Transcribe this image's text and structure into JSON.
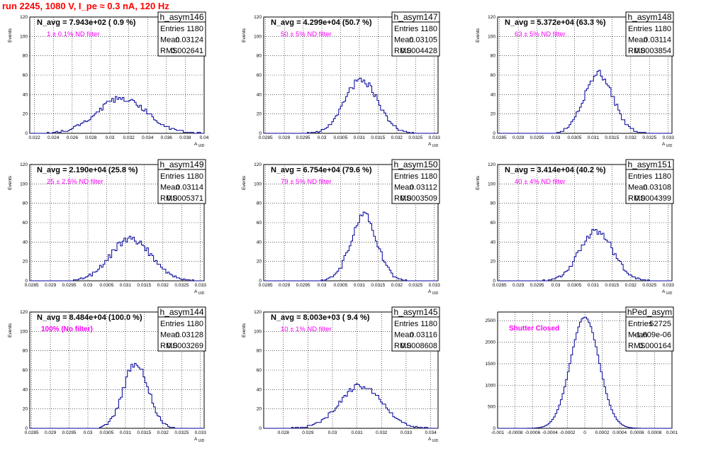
{
  "page": {
    "title": "run 2245,  1080 V, I_pe ≈ 0.3 nA, 120 Hz",
    "colors": {
      "title": "#ff0000",
      "histogram": "#000099",
      "annotation": "#ff00ff",
      "grid": "#000000"
    }
  },
  "chart_data": [
    {
      "type": "histogram",
      "stats": {
        "name": "h_asym146",
        "entries_label": "Entries",
        "entries": "1180",
        "mean_label": "Mean",
        "mean": "0.03124",
        "rms_label": "RMS",
        "rms": "0.002641"
      },
      "navg": "N_avg = 7.943e+02 ( 0.9 %)",
      "annotation": "1 ± 0.1% ND filter",
      "annotation_bold": false,
      "xlabel": "A_UID",
      "ylabel": "Events",
      "xlim": [
        0.0215,
        0.04
      ],
      "ylim": [
        0,
        120
      ],
      "xticks": [
        "0.022",
        "0.024",
        "0.026",
        "0.028",
        "0.03",
        "0.032",
        "0.034",
        "0.036",
        "0.038",
        "0.04"
      ],
      "xtick_values": [
        0.022,
        0.024,
        0.026,
        0.028,
        0.03,
        0.032,
        0.034,
        0.036,
        0.038,
        0.04
      ],
      "yticks": [
        "0",
        "20",
        "40",
        "60",
        "80",
        "100",
        "120"
      ],
      "ytick_values": [
        0,
        20,
        40,
        60,
        80,
        100,
        120
      ],
      "dist": {
        "mean": 0.03124,
        "rms": 0.002641,
        "peak": 36,
        "seed": 146
      }
    },
    {
      "type": "histogram",
      "stats": {
        "name": "h_asym147",
        "entries_label": "Entries",
        "entries": "1180",
        "mean_label": "Mean",
        "mean": "0.03105",
        "rms_label": "RMS",
        "rms": "0.0004428"
      },
      "navg": "N_avg = 4.299e+04 (50.7 %)",
      "annotation": "50 ± 5% ND filter",
      "annotation_bold": false,
      "xlabel": "A_UID",
      "ylabel": "Events",
      "xlim": [
        0.02845,
        0.0331
      ],
      "ylim": [
        0,
        120
      ],
      "xticks": [
        "0.0285",
        "0.029",
        "0.0295",
        "0.03",
        "0.0305",
        "0.031",
        "0.0315",
        "0.032",
        "0.0325",
        "0.033"
      ],
      "xtick_values": [
        0.0285,
        0.029,
        0.0295,
        0.03,
        0.0305,
        0.031,
        0.0315,
        0.032,
        0.0325,
        0.033
      ],
      "yticks": [
        "0",
        "20",
        "40",
        "60",
        "80",
        "100",
        "120"
      ],
      "ytick_values": [
        0,
        20,
        40,
        60,
        80,
        100,
        120
      ],
      "dist": {
        "mean": 0.03105,
        "rms": 0.0004428,
        "peak": 55,
        "seed": 147
      }
    },
    {
      "type": "histogram",
      "stats": {
        "name": "h_asym148",
        "entries_label": "Entries",
        "entries": "1180",
        "mean_label": "Mean",
        "mean": "0.03114",
        "rms_label": "RMS",
        "rms": "0.0003854"
      },
      "navg": "N_avg = 5.372e+04 (63.3 %)",
      "annotation": "63 ± 5% ND filter",
      "annotation_bold": false,
      "xlabel": "A_UID",
      "ylabel": "Events",
      "xlim": [
        0.02845,
        0.0331
      ],
      "ylim": [
        0,
        120
      ],
      "xticks": [
        "0.0285",
        "0.029",
        "0.0295",
        "0.03",
        "0.0305",
        "0.031",
        "0.0315",
        "0.032",
        "0.0325",
        "0.033"
      ],
      "xtick_values": [
        0.0285,
        0.029,
        0.0295,
        0.03,
        0.0305,
        0.031,
        0.0315,
        0.032,
        0.0325,
        0.033
      ],
      "yticks": [
        "0",
        "20",
        "40",
        "60",
        "80",
        "100",
        "120"
      ],
      "ytick_values": [
        0,
        20,
        40,
        60,
        80,
        100,
        120
      ],
      "dist": {
        "mean": 0.03114,
        "rms": 0.0003854,
        "peak": 62,
        "seed": 148
      }
    },
    {
      "type": "histogram",
      "stats": {
        "name": "h_asym149",
        "entries_label": "Entries",
        "entries": "1180",
        "mean_label": "Mean",
        "mean": "0.03114",
        "rms_label": "RMS",
        "rms": "0.0005371"
      },
      "navg": "N_avg = 2.190e+04 (25.8 %)",
      "annotation": "25 ± 2.5% ND filter",
      "annotation_bold": false,
      "xlabel": "A_UID",
      "ylabel": "Events",
      "xlim": [
        0.02845,
        0.0331
      ],
      "ylim": [
        0,
        120
      ],
      "xticks": [
        "0.0285",
        "0.029",
        "0.0295",
        "0.03",
        "0.0305",
        "0.031",
        "0.0315",
        "0.032",
        "0.0325",
        "0.033"
      ],
      "xtick_values": [
        0.0285,
        0.029,
        0.0295,
        0.03,
        0.0305,
        0.031,
        0.0315,
        0.032,
        0.0325,
        0.033
      ],
      "yticks": [
        "0",
        "20",
        "40",
        "60",
        "80",
        "100",
        "120"
      ],
      "ytick_values": [
        0,
        20,
        40,
        60,
        80,
        100,
        120
      ],
      "dist": {
        "mean": 0.03114,
        "rms": 0.0005371,
        "peak": 44,
        "seed": 149
      }
    },
    {
      "type": "histogram",
      "stats": {
        "name": "h_asym150",
        "entries_label": "Entries",
        "entries": "1180",
        "mean_label": "Mean",
        "mean": "0.03112",
        "rms_label": "RMS",
        "rms": "0.0003509"
      },
      "navg": "N_avg = 6.754e+04 (79.6 %)",
      "annotation": "79 ± 5% ND filter",
      "annotation_bold": false,
      "xlabel": "A_UID",
      "ylabel": "Events",
      "xlim": [
        0.02845,
        0.0331
      ],
      "ylim": [
        0,
        120
      ],
      "xticks": [
        "0.0285",
        "0.029",
        "0.0295",
        "0.03",
        "0.0305",
        "0.031",
        "0.0315",
        "0.032",
        "0.0325",
        "0.033"
      ],
      "xtick_values": [
        0.0285,
        0.029,
        0.0295,
        0.03,
        0.0305,
        0.031,
        0.0315,
        0.032,
        0.0325,
        0.033
      ],
      "yticks": [
        "0",
        "20",
        "40",
        "60",
        "80",
        "100",
        "120"
      ],
      "ytick_values": [
        0,
        20,
        40,
        60,
        80,
        100,
        120
      ],
      "dist": {
        "mean": 0.03112,
        "rms": 0.0003509,
        "peak": 67,
        "seed": 150
      }
    },
    {
      "type": "histogram",
      "stats": {
        "name": "h_asym151",
        "entries_label": "Entries",
        "entries": "1180",
        "mean_label": "Mean",
        "mean": "0.03108",
        "rms_label": "RMS",
        "rms": "0.0004399"
      },
      "navg": "N_avg = 3.414e+04 (40.2 %)",
      "annotation": "40 ± 4% ND filter",
      "annotation_bold": false,
      "xlabel": "A_UID",
      "ylabel": "Events",
      "xlim": [
        0.02845,
        0.0331
      ],
      "ylim": [
        0,
        120
      ],
      "xticks": [
        "0.0285",
        "0.029",
        "0.0295",
        "0.03",
        "0.0305",
        "0.031",
        "0.0315",
        "0.032",
        "0.0325",
        "0.033"
      ],
      "xtick_values": [
        0.0285,
        0.029,
        0.0295,
        0.03,
        0.0305,
        0.031,
        0.0315,
        0.032,
        0.0325,
        0.033
      ],
      "yticks": [
        "0",
        "20",
        "40",
        "60",
        "80",
        "100",
        "120"
      ],
      "ytick_values": [
        0,
        20,
        40,
        60,
        80,
        100,
        120
      ],
      "dist": {
        "mean": 0.03108,
        "rms": 0.0004399,
        "peak": 52,
        "seed": 151
      }
    },
    {
      "type": "histogram",
      "stats": {
        "name": "h_asym144",
        "entries_label": "Entries",
        "entries": "1180",
        "mean_label": "Mean",
        "mean": "0.03128",
        "rms_label": "RMS",
        "rms": "0.0003269"
      },
      "navg": "N_avg = 8.484e+04 (100.0 %)",
      "annotation": "100% (No filter)",
      "annotation_bold": true,
      "xlabel": "A_UID",
      "ylabel": "Events",
      "xlim": [
        0.02845,
        0.0331
      ],
      "ylim": [
        0,
        120
      ],
      "xticks": [
        "0.0285",
        "0.029",
        "0.0295",
        "0.03",
        "0.0305",
        "0.031",
        "0.0315",
        "0.032",
        "0.0325",
        "0.033"
      ],
      "xtick_values": [
        0.0285,
        0.029,
        0.0295,
        0.03,
        0.0305,
        0.031,
        0.0315,
        0.032,
        0.0325,
        0.033
      ],
      "yticks": [
        "0",
        "20",
        "40",
        "60",
        "80",
        "100",
        "120"
      ],
      "ytick_values": [
        0,
        20,
        40,
        60,
        80,
        100,
        120
      ],
      "dist": {
        "mean": 0.03128,
        "rms": 0.0003269,
        "peak": 68,
        "seed": 144
      }
    },
    {
      "type": "histogram",
      "stats": {
        "name": "h_asym145",
        "entries_label": "Entries",
        "entries": "1180",
        "mean_label": "Mean",
        "mean": "0.03116",
        "rms_label": "RMS",
        "rms": "0.0008608"
      },
      "navg": "N_avg = 8.003e+03 ( 9.4 %)",
      "annotation": "10 ± 1% ND filter",
      "annotation_bold": false,
      "xlabel": "A_UID",
      "ylabel": "Events",
      "xlim": [
        0.0272,
        0.0343
      ],
      "ylim": [
        0,
        120
      ],
      "xticks": [
        "0.028",
        "0.029",
        "0.03",
        "0.031",
        "0.032",
        "0.033",
        "0.034"
      ],
      "xtick_values": [
        0.028,
        0.029,
        0.03,
        0.031,
        0.032,
        0.033,
        0.034
      ],
      "yticks": [
        "0",
        "20",
        "40",
        "60",
        "80",
        "100",
        "120"
      ],
      "ytick_values": [
        0,
        20,
        40,
        60,
        80,
        100,
        120
      ],
      "dist": {
        "mean": 0.03116,
        "rms": 0.0008608,
        "peak": 44,
        "seed": 145
      }
    },
    {
      "type": "histogram",
      "stats": {
        "name": "hPed_asym",
        "entries_label": "Entries",
        "entries": "52725",
        "mean_label": "Mean",
        "mean": "-1.609e-06",
        "rms_label": "RMS",
        "rms": "0.000164"
      },
      "navg": "",
      "annotation": "Shutter Closed",
      "annotation_bold": true,
      "xlabel": "",
      "ylabel": "",
      "xlim": [
        -0.001,
        0.001
      ],
      "ylim": [
        0,
        2700
      ],
      "xticks": [
        "-0.001",
        "-0.0008",
        "-0.0006",
        "-0.0004",
        "-0.0002",
        "0",
        "0.0002",
        "0.0004",
        "0.0006",
        "0.0008",
        "0.001"
      ],
      "xtick_values": [
        -0.001,
        -0.0008,
        -0.0006,
        -0.0004,
        -0.0002,
        0,
        0.0002,
        0.0004,
        0.0006,
        0.0008,
        0.001
      ],
      "yticks": [
        "0",
        "500",
        "1000",
        "1500",
        "2000",
        "2500"
      ],
      "ytick_values": [
        0,
        500,
        1000,
        1500,
        2000,
        2500
      ],
      "dist": {
        "mean": 0,
        "rms": 0.000164,
        "peak": 2580,
        "seed": 999
      }
    }
  ]
}
